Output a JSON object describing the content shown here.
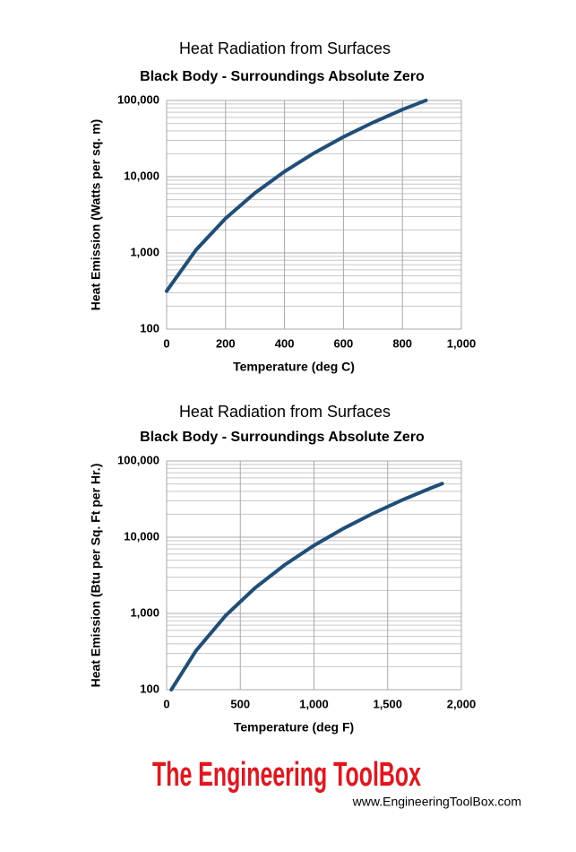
{
  "chart_data": [
    {
      "type": "line",
      "title": "Heat Radiation from Surfaces",
      "subtitle": "Black Body - Surroundings Absolute Zero",
      "x_label": "Temperature (deg C)",
      "y_label": "Heat Emission (Watts per sq. m)",
      "x": [
        0,
        100,
        200,
        300,
        400,
        500,
        600,
        700,
        800,
        880
      ],
      "series": [
        {
          "name": "Heat Emission",
          "color": "#1f4e79",
          "values": [
            316,
            1097,
            2836,
            6123,
            11686,
            20388,
            33224,
            51309,
            75900,
            100200
          ]
        }
      ],
      "xlim": [
        0,
        1000
      ],
      "xticks": [
        0,
        200,
        400,
        600,
        800,
        {
          "value": 1000,
          "label": "1,000"
        }
      ],
      "ylim": [
        100,
        100000
      ],
      "yticks": [
        100,
        {
          "value": 1000,
          "label": "1,000"
        },
        {
          "value": 10000,
          "label": "10,000"
        },
        {
          "value": 100000,
          "label": "100,000"
        }
      ],
      "y_log": true,
      "grid": true,
      "minor_grid": true
    },
    {
      "type": "line",
      "title": "Heat Radiation from Surfaces",
      "subtitle": "Black Body - Surroundings Absolute Zero",
      "x_label": "Temperature (deg F)",
      "y_label": "Heat Emission (Btu per Sq. Ft per Hr.)",
      "x": [
        32,
        200,
        400,
        600,
        800,
        1000,
        1200,
        1400,
        1600,
        1800,
        1870
      ],
      "series": [
        {
          "name": "Heat Emission",
          "color": "#1f4e79",
          "values": [
            100,
            325,
            936,
            2161,
            4316,
            7781,
            13004,
            20500,
            30850,
            44690,
            50500
          ]
        }
      ],
      "xlim": [
        0,
        2000
      ],
      "xticks": [
        0,
        500,
        {
          "value": 1000,
          "label": "1,000"
        },
        {
          "value": 1500,
          "label": "1,500"
        },
        {
          "value": 2000,
          "label": "2,000"
        }
      ],
      "ylim": [
        100,
        100000
      ],
      "yticks": [
        100,
        {
          "value": 1000,
          "label": "1,000"
        },
        {
          "value": 10000,
          "label": "10,000"
        },
        {
          "value": 100000,
          "label": "100,000"
        }
      ],
      "y_log": true,
      "grid": true,
      "minor_grid": true
    }
  ],
  "brand": {
    "name": "The Engineering ToolBox",
    "url": "www.EngineeringToolBox.com"
  }
}
